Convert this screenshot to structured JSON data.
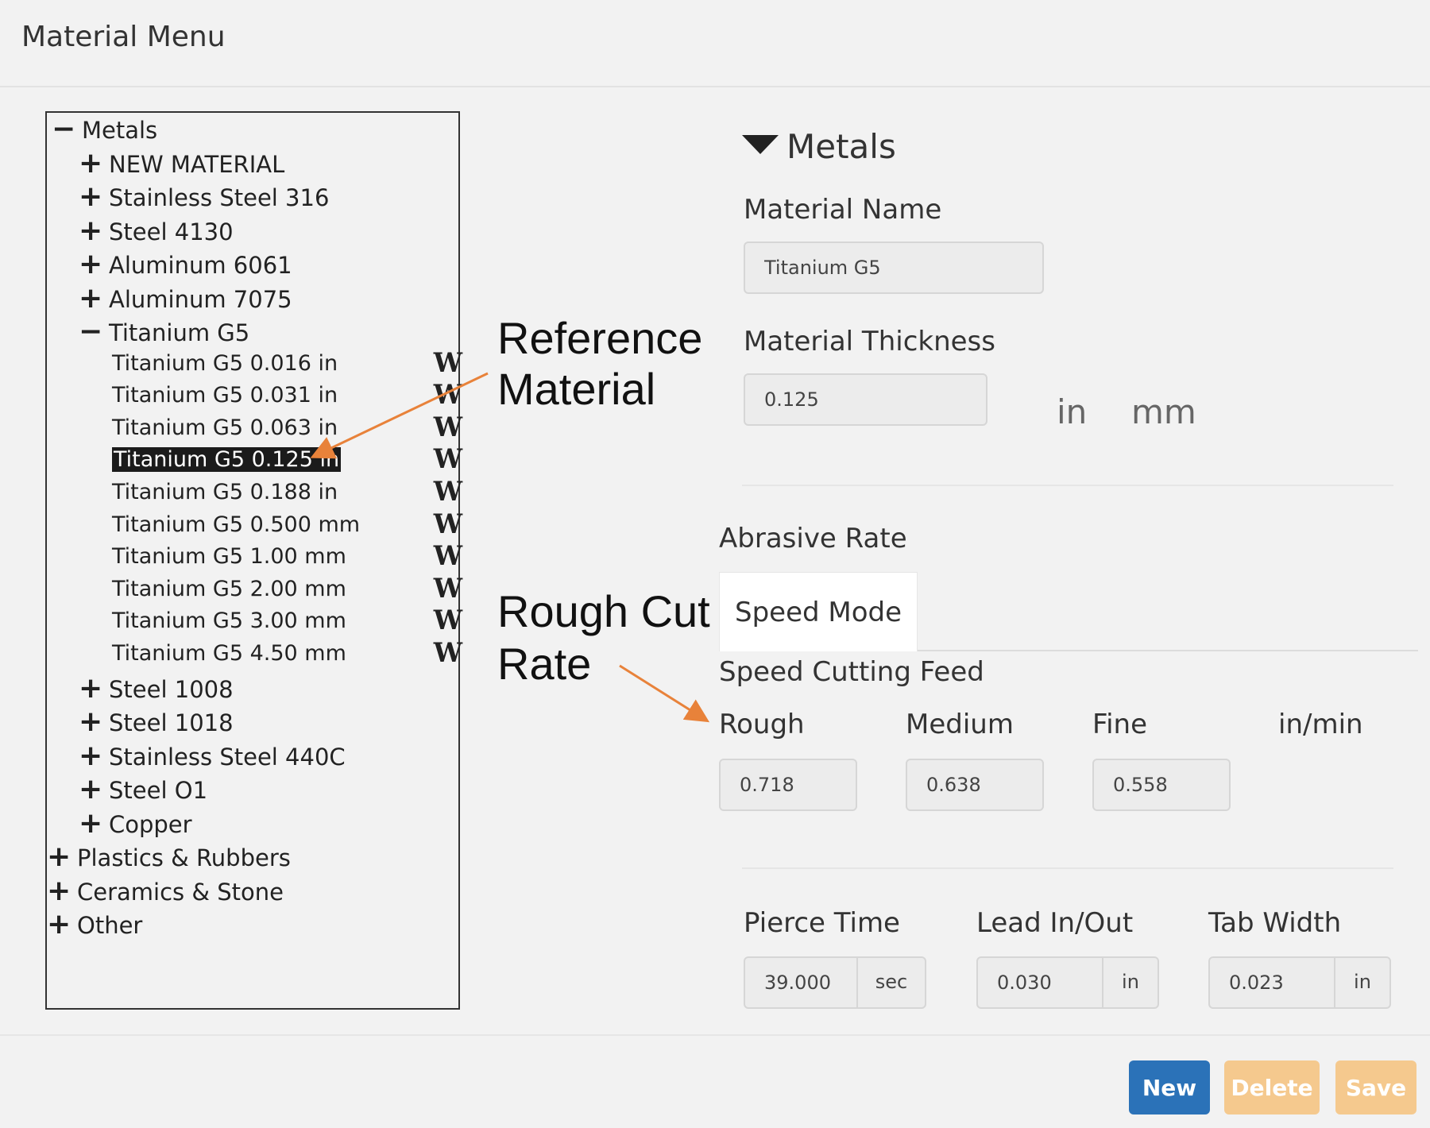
{
  "header": {
    "title": "Material Menu"
  },
  "tree": {
    "root": {
      "toggle": "−",
      "label": "Metals"
    },
    "metals": [
      {
        "toggle": "+",
        "label": "NEW MATERIAL"
      },
      {
        "toggle": "+",
        "label": "Stainless Steel 316"
      },
      {
        "toggle": "+",
        "label": "Steel 4130"
      },
      {
        "toggle": "+",
        "label": "Aluminum 6061"
      },
      {
        "toggle": "+",
        "label": "Aluminum 7075"
      },
      {
        "toggle": "−",
        "label": "Titanium G5"
      }
    ],
    "titanium_leaves": [
      {
        "label": "Titanium G5 0.016 in",
        "icon": "W",
        "selected": false
      },
      {
        "label": "Titanium G5 0.031 in",
        "icon": "W",
        "selected": false
      },
      {
        "label": "Titanium G5 0.063 in",
        "icon": "W",
        "selected": false
      },
      {
        "label": "Titanium G5 0.125 in",
        "icon": "W",
        "selected": true
      },
      {
        "label": "Titanium G5 0.188 in",
        "icon": "W",
        "selected": false
      },
      {
        "label": "Titanium G5 0.500 mm",
        "icon": "W",
        "selected": false
      },
      {
        "label": "Titanium G5 1.00 mm",
        "icon": "W",
        "selected": false
      },
      {
        "label": "Titanium G5 2.00 mm",
        "icon": "W",
        "selected": false
      },
      {
        "label": "Titanium G5 3.00 mm",
        "icon": "W",
        "selected": false
      },
      {
        "label": "Titanium G5 4.50 mm",
        "icon": "W",
        "selected": false
      }
    ],
    "metals_after": [
      {
        "toggle": "+",
        "label": "Steel 1008"
      },
      {
        "toggle": "+",
        "label": "Steel 1018"
      },
      {
        "toggle": "+",
        "label": "Stainless Steel 440C"
      },
      {
        "toggle": "+",
        "label": "Steel O1"
      },
      {
        "toggle": "+",
        "label": "Copper"
      }
    ],
    "roots_after": [
      {
        "toggle": "+",
        "label": "Plastics & Rubbers"
      },
      {
        "toggle": "+",
        "label": "Ceramics & Stone"
      },
      {
        "toggle": "+",
        "label": "Other"
      }
    ]
  },
  "annotations": {
    "reference_line1": "Reference",
    "reference_line2": "Material",
    "rough_line1": "Rough Cut",
    "rough_line2": "Rate",
    "arrow_color": "#e8823a"
  },
  "details": {
    "section_title": "Metals",
    "material_name_label": "Material Name",
    "material_name_value": "Titanium G5",
    "thickness_label": "Material Thickness",
    "thickness_value": "0.125",
    "unit_in": "in",
    "unit_mm": "mm",
    "abrasive_label": "Abrasive Rate",
    "tab_speed_mode": "Speed Mode",
    "speed_feed_label": "Speed Cutting Feed",
    "rough_label": "Rough",
    "medium_label": "Medium",
    "fine_label": "Fine",
    "feed_unit": "in/min",
    "rough_value": "0.718",
    "medium_value": "0.638",
    "fine_value": "0.558",
    "pierce_label": "Pierce Time",
    "pierce_value": "39.000",
    "pierce_unit": "sec",
    "lead_label": "Lead In/Out",
    "lead_value": "0.030",
    "lead_unit": "in",
    "tab_label": "Tab Width",
    "tab_value": "0.023",
    "tab_unit": "in"
  },
  "buttons": {
    "new": "New",
    "delete": "Delete",
    "save": "Save",
    "new_color": "#2b72b8",
    "delete_color": "#f5c98e",
    "save_color": "#f5c98e"
  }
}
